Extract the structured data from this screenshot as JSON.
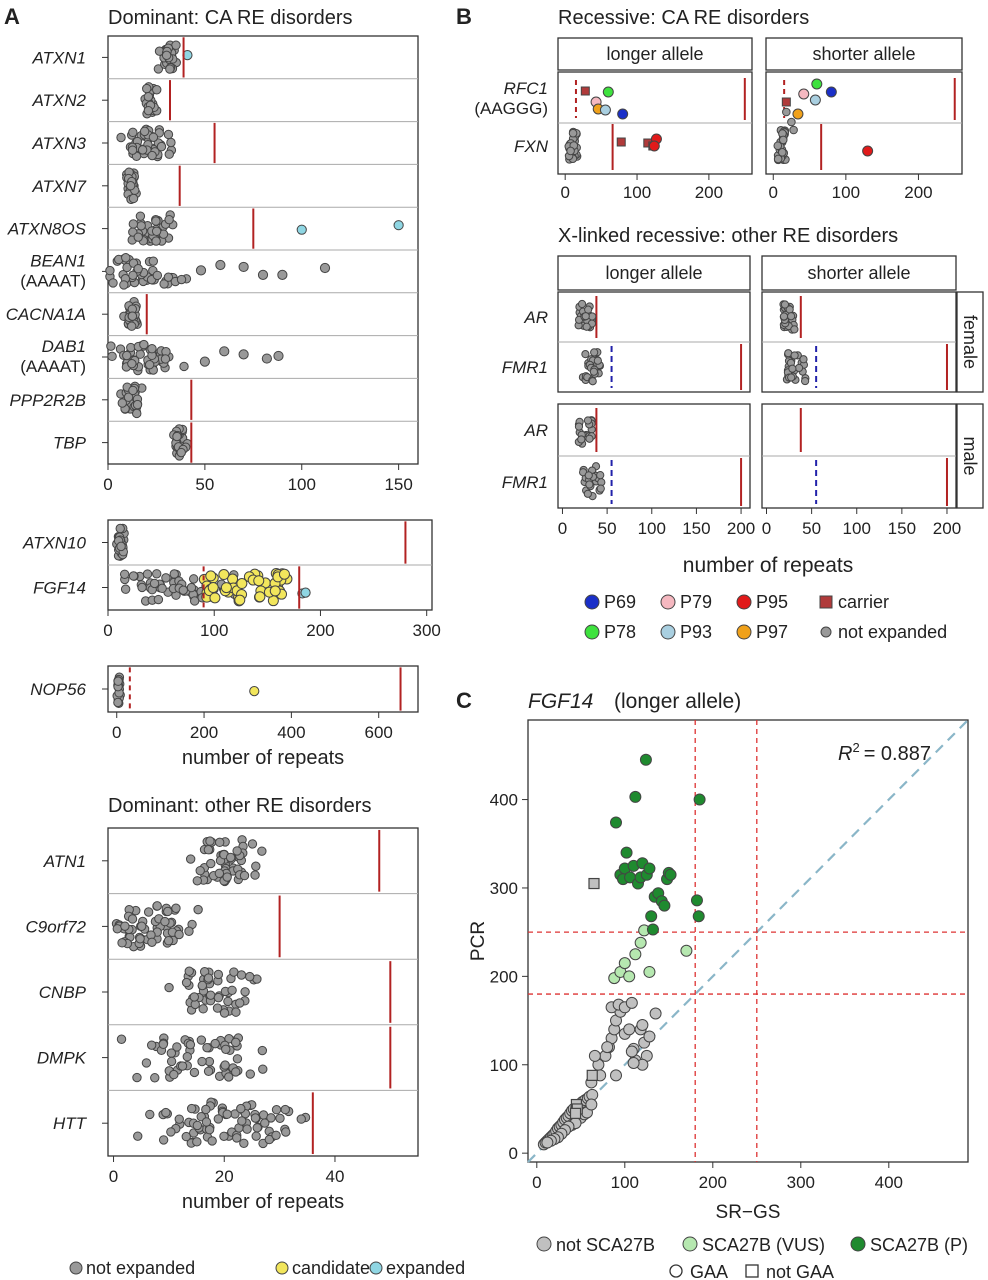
{
  "colors": {
    "not_expanded": "#999999",
    "candidate": "#f2e65c",
    "expanded": "#8fd6e3",
    "threshold": "#b22222",
    "dash_blue": "#2222aa",
    "P69": "#1a2fc8",
    "P78": "#3ee23e",
    "P79": "#f5b8c0",
    "P93": "#a9cfe0",
    "P95": "#e11a1a",
    "P97": "#f0a11a",
    "carrier": "#b03a3a",
    "scaNot": "#c0c0c0",
    "scaVUS": "#b6e8b0",
    "scaP": "#1f8a2f",
    "identity": "#8ab6c8"
  },
  "panels": {
    "A": "A",
    "B": "B",
    "C": "C"
  },
  "chart_data": [
    {
      "id": "A1",
      "type": "scatter",
      "title": "Dominant: CA RE disorders",
      "xlim": [
        0,
        160
      ],
      "xticks": [
        0,
        50,
        100,
        150
      ],
      "rows": [
        {
          "label": "ATXN1",
          "center": 31,
          "spread": 5,
          "n": 30,
          "threshold": 39,
          "extra": [
            {
              "v": 41,
              "c": "expanded"
            }
          ]
        },
        {
          "label": "ATXN2",
          "center": 22,
          "spread": 4,
          "n": 28,
          "threshold": 32
        },
        {
          "label": "ATXN3",
          "center": 20,
          "spread": 14,
          "n": 45,
          "threshold": 55
        },
        {
          "label": "ATXN7",
          "center": 12,
          "spread": 3,
          "n": 30,
          "threshold": 37
        },
        {
          "label": "ATXN8OS",
          "center": 22,
          "spread": 12,
          "n": 40,
          "threshold": 75,
          "extra": [
            {
              "v": 100,
              "c": "expanded"
            },
            {
              "v": 150,
              "c": "expanded"
            }
          ]
        },
        {
          "label": "BEAN1",
          "label2": "(AAAAT)",
          "center": 20,
          "spread": 22,
          "n": 45,
          "threshold": null,
          "extra": [
            {
              "v": 48,
              "c": "not_expanded"
            },
            {
              "v": 58,
              "c": "not_expanded"
            },
            {
              "v": 70,
              "c": "not_expanded"
            },
            {
              "v": 80,
              "c": "not_expanded"
            },
            {
              "v": 90,
              "c": "not_expanded"
            },
            {
              "v": 112,
              "c": "not_expanded"
            }
          ]
        },
        {
          "label": "CACNA1A",
          "center": 12,
          "spread": 4,
          "n": 30,
          "threshold": 20
        },
        {
          "label": "DAB1",
          "label2": "(AAAAT)",
          "center": 20,
          "spread": 20,
          "n": 45,
          "threshold": null,
          "extra": [
            {
              "v": 50,
              "c": "not_expanded"
            },
            {
              "v": 60,
              "c": "not_expanded"
            },
            {
              "v": 70,
              "c": "not_expanded"
            },
            {
              "v": 82,
              "c": "not_expanded"
            },
            {
              "v": 88,
              "c": "not_expanded"
            }
          ]
        },
        {
          "label": "PPP2R2B",
          "center": 12,
          "spread": 6,
          "n": 30,
          "threshold": 43
        },
        {
          "label": "TBP",
          "center": 37,
          "spread": 4,
          "n": 30,
          "threshold": 43
        }
      ]
    },
    {
      "id": "A2",
      "type": "scatter",
      "xlim": [
        0,
        305
      ],
      "xticks": [
        0,
        100,
        200,
        300
      ],
      "rows": [
        {
          "label": "ATXN10",
          "center": 12,
          "spread": 4,
          "n": 30,
          "threshold": 280
        },
        {
          "label": "FGF14",
          "center": 70,
          "spread": 55,
          "n": 60,
          "threshold": 180,
          "dashed": 90,
          "candidates": 45,
          "extra": [
            {
              "v": 183,
              "c": "expanded"
            },
            {
              "v": 186,
              "c": "expanded"
            }
          ]
        }
      ]
    },
    {
      "id": "A3",
      "type": "scatter",
      "xlabel": "number of repeats",
      "xlim": [
        -20,
        690
      ],
      "xticks": [
        0,
        200,
        400,
        600
      ],
      "rows": [
        {
          "label": "NOP56",
          "center": 5,
          "spread": 4,
          "n": 20,
          "threshold": 650,
          "dashed": 30,
          "extra": [
            {
              "v": 315,
              "c": "candidate"
            }
          ]
        }
      ]
    },
    {
      "id": "A4",
      "type": "scatter",
      "title": "Dominant: other RE disorders",
      "xlabel": "number of repeats",
      "xlim": [
        -1,
        55
      ],
      "xticks": [
        0,
        20,
        40
      ],
      "rows": [
        {
          "label": "ATN1",
          "center": 20,
          "spread": 7,
          "n": 55,
          "threshold": 48
        },
        {
          "label": "C9orf72",
          "center": 6,
          "spread": 10,
          "n": 60,
          "threshold": 30
        },
        {
          "label": "CNBP",
          "center": 18,
          "spread": 8,
          "n": 50,
          "threshold": 50
        },
        {
          "label": "DMPK",
          "center": 15,
          "spread": 14,
          "n": 60,
          "threshold": 50
        },
        {
          "label": "HTT",
          "center": 20,
          "spread": 16,
          "n": 80,
          "threshold": 36
        }
      ]
    },
    {
      "id": "B1",
      "type": "scatter",
      "title": "Recessive: CA RE disorders",
      "facets": [
        "longer allele",
        "shorter allele"
      ],
      "xlim": [
        -10,
        260
      ],
      "xticks": [
        0,
        100,
        200
      ],
      "rows": [
        {
          "label": "RFC1",
          "label2": "(AAGGG)"
        },
        {
          "label": "FXN"
        }
      ]
    },
    {
      "id": "B2",
      "type": "scatter",
      "title": "X-linked recessive: other RE disorders",
      "xlabel": "number of repeats",
      "facets": [
        "longer allele",
        "shorter allele"
      ],
      "strips": [
        "female",
        "male"
      ],
      "rows": [
        "AR",
        "FMR1"
      ],
      "xlim": [
        -5,
        210
      ],
      "xticks": [
        0,
        50,
        100,
        150,
        200
      ]
    },
    {
      "id": "C",
      "type": "scatter",
      "title": "FGF14",
      "subtitle": "(longer allele)",
      "xlabel": "SR−GS",
      "ylabel": "PCR",
      "xlim": [
        -10,
        490
      ],
      "ylim": [
        -10,
        490
      ],
      "xticks": [
        0,
        100,
        200,
        300,
        400
      ],
      "yticks": [
        0,
        100,
        200,
        300,
        400
      ],
      "r2_label": "R",
      "r2_sup": "2",
      "r2_value": "= 0.887",
      "vlines": [
        180,
        250
      ],
      "hlines": [
        180,
        250
      ],
      "points_not": [
        [
          8,
          10
        ],
        [
          10,
          12
        ],
        [
          12,
          14
        ],
        [
          14,
          16
        ],
        [
          16,
          18
        ],
        [
          18,
          20
        ],
        [
          20,
          22
        ],
        [
          22,
          25
        ],
        [
          24,
          28
        ],
        [
          26,
          30
        ],
        [
          28,
          32
        ],
        [
          30,
          35
        ],
        [
          32,
          38
        ],
        [
          34,
          40
        ],
        [
          36,
          42
        ],
        [
          38,
          45
        ],
        [
          40,
          48
        ],
        [
          42,
          50
        ],
        [
          45,
          52
        ],
        [
          48,
          55
        ],
        [
          50,
          56
        ],
        [
          52,
          58
        ],
        [
          55,
          60
        ],
        [
          58,
          62
        ],
        [
          60,
          64
        ],
        [
          63,
          66
        ],
        [
          46,
          38
        ],
        [
          50,
          40
        ],
        [
          54,
          44
        ],
        [
          57,
          46
        ],
        [
          62,
          55
        ],
        [
          40,
          32
        ],
        [
          44,
          34
        ],
        [
          36,
          30
        ],
        [
          32,
          26
        ],
        [
          28,
          22
        ],
        [
          24,
          18
        ],
        [
          20,
          16
        ],
        [
          16,
          14
        ],
        [
          12,
          12
        ],
        [
          62,
          80
        ],
        [
          70,
          100
        ],
        [
          78,
          110
        ],
        [
          82,
          120
        ],
        [
          85,
          130
        ],
        [
          88,
          140
        ],
        [
          90,
          150
        ],
        [
          95,
          160
        ],
        [
          100,
          135
        ],
        [
          105,
          140
        ],
        [
          110,
          118
        ],
        [
          112,
          105
        ],
        [
          118,
          140
        ],
        [
          120,
          145
        ],
        [
          122,
          125
        ],
        [
          128,
          132
        ],
        [
          125,
          110
        ],
        [
          120,
          100
        ],
        [
          108,
          115
        ],
        [
          90,
          88
        ],
        [
          80,
          120
        ],
        [
          72,
          88
        ],
        [
          85,
          165
        ],
        [
          93,
          168
        ],
        [
          100,
          165
        ],
        [
          108,
          170
        ],
        [
          135,
          158
        ],
        [
          66,
          110
        ],
        [
          110,
          102
        ]
      ],
      "points_vus": [
        [
          88,
          198
        ],
        [
          95,
          205
        ],
        [
          100,
          215
        ],
        [
          105,
          200
        ],
        [
          112,
          225
        ],
        [
          118,
          238
        ],
        [
          122,
          252
        ],
        [
          128,
          205
        ],
        [
          170,
          229
        ]
      ],
      "points_p": [
        [
          90,
          374
        ],
        [
          95,
          315
        ],
        [
          98,
          310
        ],
        [
          100,
          322
        ],
        [
          102,
          340
        ],
        [
          106,
          312
        ],
        [
          110,
          325
        ],
        [
          115,
          305
        ],
        [
          118,
          312
        ],
        [
          120,
          328
        ],
        [
          124,
          445
        ],
        [
          125,
          315
        ],
        [
          128,
          322
        ],
        [
          130,
          268
        ],
        [
          132,
          253
        ],
        [
          134,
          290
        ],
        [
          138,
          294
        ],
        [
          142,
          285
        ],
        [
          145,
          280
        ],
        [
          148,
          310
        ],
        [
          150,
          317
        ],
        [
          152,
          315
        ],
        [
          185,
          400
        ],
        [
          182,
          286
        ],
        [
          184,
          268
        ],
        [
          112,
          403
        ]
      ],
      "squares": [
        [
          65,
          305
        ],
        [
          63,
          88
        ],
        [
          45,
          55
        ],
        [
          46,
          50
        ],
        [
          44,
          45
        ]
      ]
    }
  ],
  "legend_A": [
    "not expanded",
    "candidate",
    "expanded"
  ],
  "legend_B": {
    "row1": [
      "P69",
      "P79",
      "P95",
      "carrier"
    ],
    "row2": [
      "P78",
      "P93",
      "P97",
      "not expanded"
    ]
  },
  "legend_C": {
    "row1": [
      "not SCA27B",
      "SCA27B (VUS)",
      "SCA27B (P)"
    ],
    "row2": [
      "GAA",
      "not GAA"
    ]
  }
}
